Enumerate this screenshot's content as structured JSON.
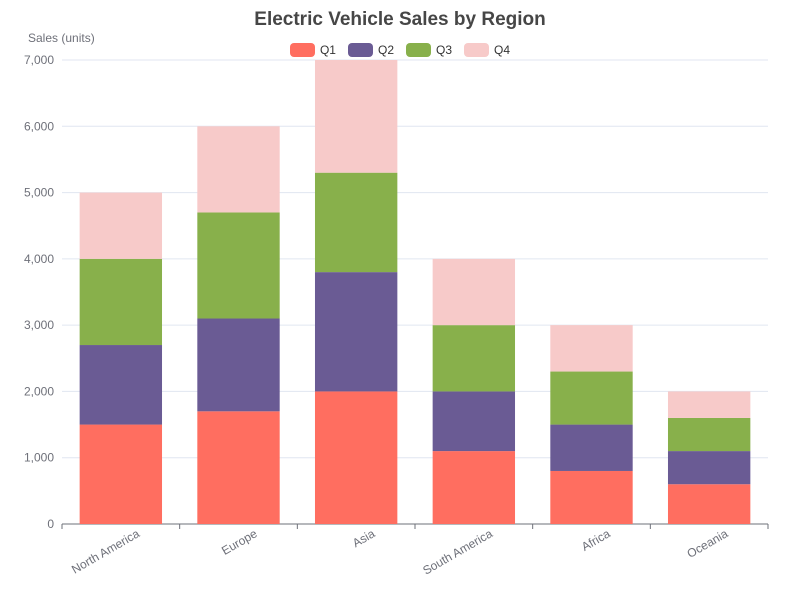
{
  "chart_data": {
    "type": "bar",
    "stacked": true,
    "title": "Electric Vehicle Sales by Region",
    "ylabel": "Sales (units)",
    "xlabel": "",
    "categories": [
      "North America",
      "Europe",
      "Asia",
      "South America",
      "Africa",
      "Oceania"
    ],
    "ylim": [
      0,
      7000
    ],
    "yticks": [
      "0",
      "1,000",
      "2,000",
      "3,000",
      "4,000",
      "5,000",
      "6,000",
      "7,000"
    ],
    "grid": true,
    "legend_position": "top-center",
    "series": [
      {
        "name": "Q1",
        "color": "#ff6e60",
        "values": [
          1500,
          1700,
          2000,
          1100,
          800,
          600
        ]
      },
      {
        "name": "Q2",
        "color": "#6a5b94",
        "values": [
          1200,
          1400,
          1800,
          900,
          700,
          500
        ]
      },
      {
        "name": "Q3",
        "color": "#88b04b",
        "values": [
          1300,
          1600,
          1500,
          1000,
          800,
          500
        ]
      },
      {
        "name": "Q4",
        "color": "#f7cac9",
        "values": [
          1000,
          1300,
          1700,
          1000,
          700,
          400
        ]
      }
    ]
  }
}
